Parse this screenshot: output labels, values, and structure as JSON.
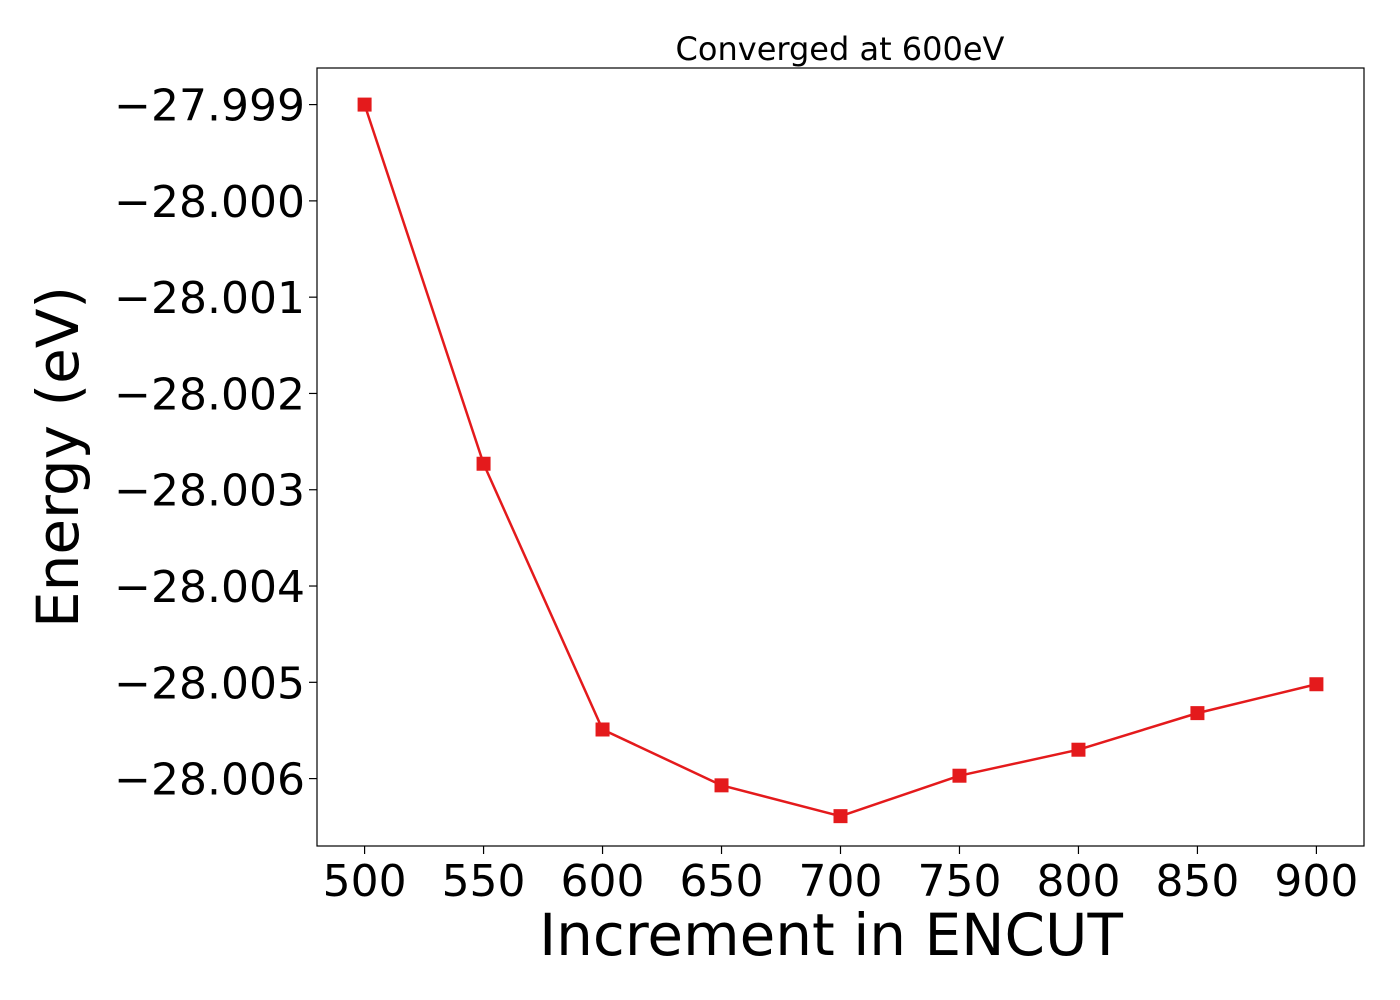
{
  "chart_data": {
    "type": "line",
    "title": "Converged at 600eV",
    "xlabel": "Increment in ENCUT",
    "ylabel": "Energy (eV)",
    "x": [
      500,
      550,
      600,
      650,
      700,
      750,
      800,
      850,
      900
    ],
    "series": [
      {
        "values": [
          -27.999,
          -28.00273,
          -28.00549,
          -28.00607,
          -28.00639,
          -28.00597,
          -28.0057,
          -28.00532,
          -28.00502
        ],
        "color": "#e41a1c",
        "marker": "square"
      }
    ],
    "xticks": [
      500,
      550,
      600,
      650,
      700,
      750,
      800,
      850,
      900
    ],
    "xtick_labels": [
      "500",
      "550",
      "600",
      "650",
      "700",
      "750",
      "800",
      "850",
      "900"
    ],
    "yticks": [
      -27.999,
      -28.0,
      -28.001,
      -28.002,
      -28.003,
      -28.004,
      -28.005,
      -28.006
    ],
    "ytick_labels": [
      "−27.999",
      "−28.000",
      "−28.001",
      "−28.002",
      "−28.003",
      "−28.004",
      "−28.005",
      "−28.006"
    ],
    "xlim": [
      480,
      920
    ],
    "ylim": [
      -28.0067,
      -27.99862
    ],
    "grid": false,
    "legend": false
  }
}
